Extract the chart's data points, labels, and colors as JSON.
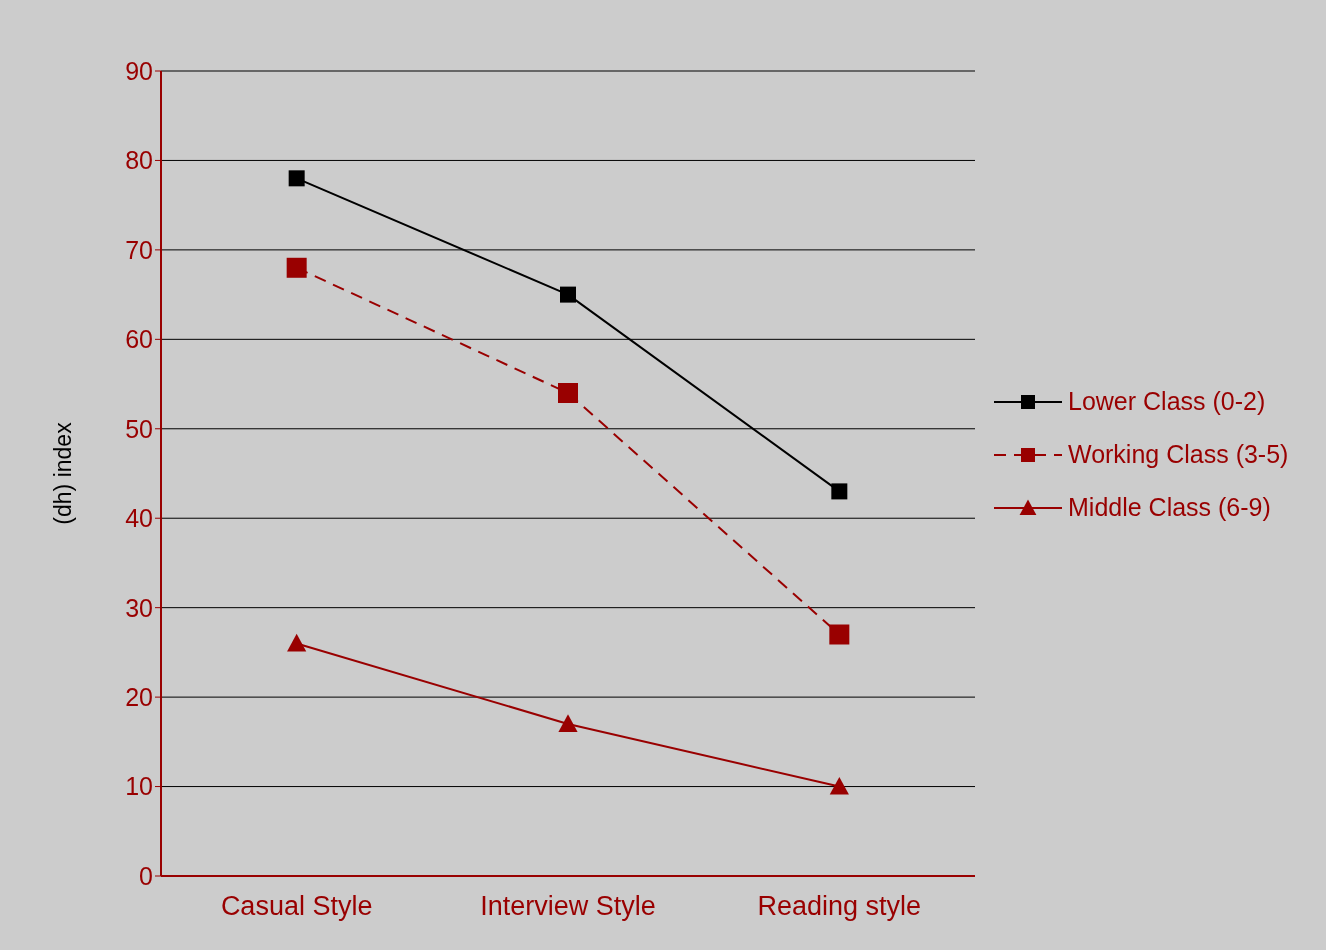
{
  "chart_data": {
    "type": "line",
    "ylabel": "(dh) index",
    "categories": [
      "Casual Style",
      "Interview Style",
      "Reading style"
    ],
    "ylim": [
      0,
      90
    ],
    "yticks": [
      0,
      10,
      20,
      30,
      40,
      50,
      60,
      70,
      80,
      90
    ],
    "grid": "y",
    "legend": "right",
    "series": [
      {
        "name": "Lower Class (0-2)",
        "color": "#000000",
        "values": [
          78,
          65,
          43
        ],
        "marker": "square",
        "line_style": "solid"
      },
      {
        "name": "Working Class (3-5)",
        "color": "#990000",
        "values": [
          68,
          54,
          27
        ],
        "marker": "square",
        "line_style": "dashed"
      },
      {
        "name": "Middle Class (6-9)",
        "color": "#990000",
        "values": [
          26,
          17,
          10
        ],
        "marker": "triangle",
        "line_style": "solid"
      }
    ]
  }
}
